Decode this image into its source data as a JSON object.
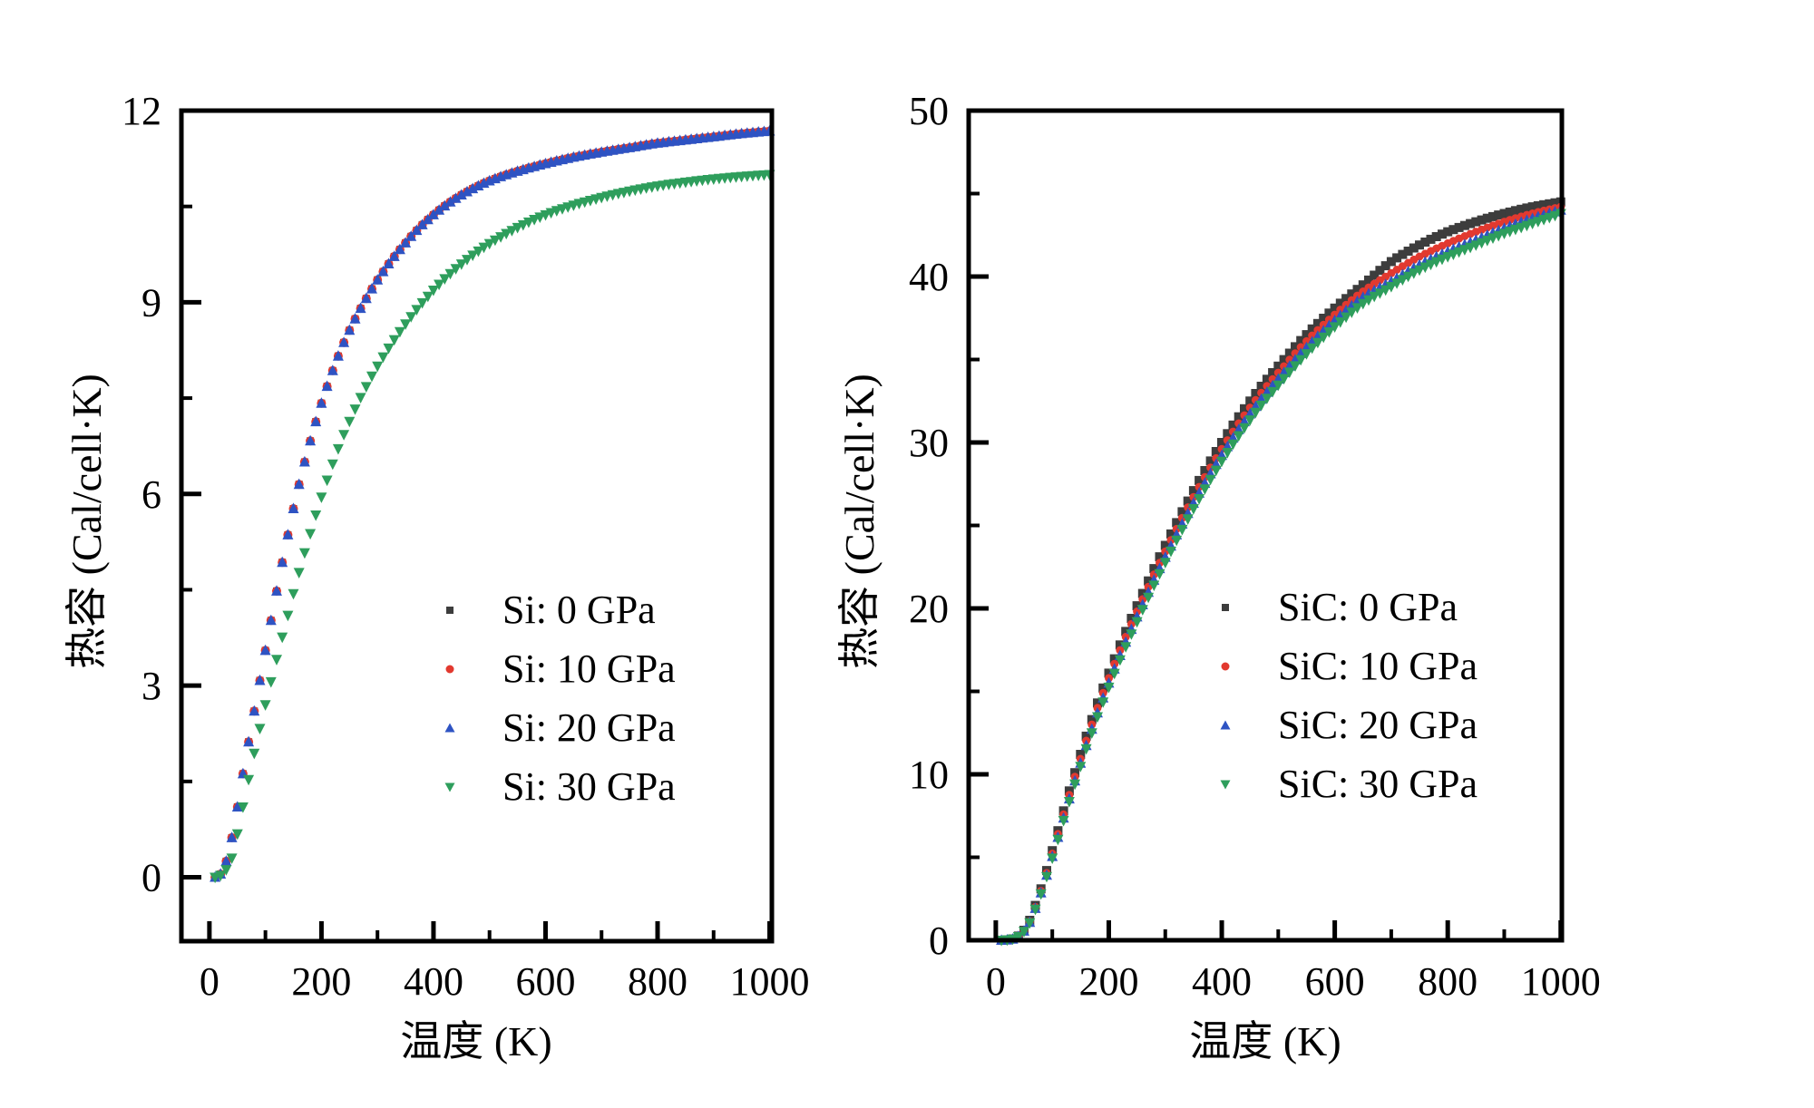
{
  "figure": {
    "background": "#ffffff",
    "text_color": "#000000"
  },
  "chart_data": [
    {
      "id": "si",
      "type": "scatter",
      "title": "",
      "xlabel": "温度 (K)",
      "ylabel": "热容 (Cal/cell·K)",
      "xlim": [
        -50,
        1004
      ],
      "ylim": [
        -1,
        12
      ],
      "grid": false,
      "legend_position": "inside-right-middle",
      "x_ticks_major": [
        0,
        200,
        400,
        600,
        800,
        1000
      ],
      "x_tick_labels": [
        "0",
        "200",
        "400",
        "600",
        "800",
        "1000"
      ],
      "x_ticks_minor": [
        100,
        300,
        500,
        700,
        900
      ],
      "y_ticks_major": [
        0,
        3,
        6,
        9,
        12
      ],
      "y_tick_labels": [
        "0",
        "3",
        "6",
        "9",
        "12"
      ],
      "y_ticks_minor": [
        1.5,
        4.5,
        7.5,
        10.5
      ],
      "sample_step_K": 10,
      "sample_start_K": 10,
      "sample_end_K": 1000,
      "knots_T": [
        10,
        20,
        30,
        40,
        50,
        60,
        70,
        80,
        90,
        100,
        110,
        120,
        130,
        140,
        150,
        160,
        170,
        180,
        190,
        200,
        220,
        240,
        260,
        280,
        300,
        325,
        350,
        375,
        400,
        425,
        450,
        475,
        500,
        550,
        600,
        650,
        700,
        750,
        800,
        850,
        900,
        950,
        1000
      ],
      "series": [
        {
          "name": "Si: 0 GPa",
          "marker": "square",
          "color": "#3d3d3d",
          "size": 8,
          "C": [
            0.0,
            0.05,
            0.25,
            0.62,
            1.1,
            1.62,
            2.12,
            2.6,
            3.08,
            3.55,
            4.02,
            4.48,
            4.93,
            5.36,
            5.77,
            6.15,
            6.5,
            6.83,
            7.13,
            7.42,
            7.93,
            8.37,
            8.74,
            9.06,
            9.35,
            9.66,
            9.93,
            10.17,
            10.37,
            10.54,
            10.68,
            10.8,
            10.9,
            11.05,
            11.17,
            11.27,
            11.35,
            11.42,
            11.49,
            11.54,
            11.59,
            11.64,
            11.68
          ]
        },
        {
          "name": "Si: 10 GPa",
          "marker": "circle",
          "color": "#e2392f",
          "size": 10,
          "C": [
            0.0,
            0.05,
            0.25,
            0.62,
            1.1,
            1.62,
            2.12,
            2.6,
            3.08,
            3.55,
            4.02,
            4.48,
            4.93,
            5.36,
            5.77,
            6.15,
            6.5,
            6.83,
            7.13,
            7.42,
            7.93,
            8.37,
            8.74,
            9.06,
            9.35,
            9.66,
            9.93,
            10.17,
            10.37,
            10.54,
            10.68,
            10.8,
            10.9,
            11.05,
            11.17,
            11.27,
            11.35,
            11.42,
            11.49,
            11.54,
            11.59,
            11.64,
            11.68
          ]
        },
        {
          "name": "Si: 20 GPa",
          "marker": "triangle-up",
          "color": "#2e53c3",
          "size": 12,
          "C": [
            0.0,
            0.05,
            0.25,
            0.62,
            1.1,
            1.62,
            2.12,
            2.6,
            3.08,
            3.55,
            4.02,
            4.48,
            4.93,
            5.36,
            5.77,
            6.15,
            6.5,
            6.83,
            7.13,
            7.42,
            7.93,
            8.37,
            8.74,
            9.06,
            9.35,
            9.66,
            9.93,
            10.17,
            10.37,
            10.54,
            10.68,
            10.8,
            10.9,
            11.05,
            11.17,
            11.27,
            11.35,
            11.42,
            11.49,
            11.54,
            11.59,
            11.64,
            11.68
          ]
        },
        {
          "name": "Si: 30 GPa",
          "marker": "triangle-down",
          "color": "#2e9e5c",
          "size": 12,
          "C": [
            0.0,
            0.03,
            0.12,
            0.3,
            0.68,
            1.1,
            1.53,
            1.94,
            2.33,
            2.7,
            3.06,
            3.41,
            3.76,
            4.1,
            4.44,
            4.77,
            5.08,
            5.38,
            5.67,
            5.95,
            6.47,
            6.93,
            7.33,
            7.68,
            8.0,
            8.35,
            8.66,
            8.94,
            9.19,
            9.41,
            9.6,
            9.77,
            9.92,
            10.17,
            10.37,
            10.52,
            10.64,
            10.74,
            10.82,
            10.88,
            10.93,
            10.97,
            11.0
          ]
        }
      ]
    },
    {
      "id": "sic",
      "type": "scatter",
      "title": "",
      "xlabel": "温度 (K)",
      "ylabel": "热容 (Cal/cell·K)",
      "xlim": [
        -48,
        1002
      ],
      "ylim": [
        0,
        50
      ],
      "grid": false,
      "legend_position": "inside-right-middle",
      "x_ticks_major": [
        0,
        200,
        400,
        600,
        800,
        1000
      ],
      "x_tick_labels": [
        "0",
        "200",
        "400",
        "600",
        "800",
        "1000"
      ],
      "x_ticks_minor": [
        100,
        300,
        500,
        700,
        900
      ],
      "y_ticks_major": [
        0,
        10,
        20,
        30,
        40,
        50
      ],
      "y_tick_labels": [
        "0",
        "10",
        "20",
        "30",
        "40",
        "50"
      ],
      "y_ticks_minor": [
        5,
        15,
        25,
        35,
        45
      ],
      "sample_step_K": 10,
      "sample_start_K": 10,
      "sample_end_K": 1000,
      "knots_T": [
        10,
        20,
        30,
        40,
        50,
        60,
        70,
        80,
        90,
        100,
        110,
        120,
        130,
        140,
        150,
        160,
        170,
        180,
        190,
        200,
        220,
        240,
        260,
        280,
        300,
        325,
        350,
        375,
        400,
        425,
        450,
        475,
        500,
        550,
        600,
        650,
        700,
        750,
        800,
        850,
        900,
        950,
        1000
      ],
      "series": [
        {
          "name": "SiC: 0 GPa",
          "marker": "square",
          "color": "#3d3d3d",
          "size": 10,
          "C": [
            0.0,
            0.02,
            0.08,
            0.25,
            0.6,
            1.2,
            2.1,
            3.1,
            4.2,
            5.4,
            6.6,
            7.8,
            9.0,
            10.1,
            11.2,
            12.3,
            13.3,
            14.3,
            15.2,
            16.1,
            17.8,
            19.4,
            20.9,
            22.4,
            23.8,
            25.5,
            27.1,
            28.6,
            30.0,
            31.3,
            32.5,
            33.6,
            34.6,
            36.5,
            38.1,
            39.5,
            40.9,
            41.9,
            42.7,
            43.3,
            43.8,
            44.2,
            44.5
          ]
        },
        {
          "name": "SiC: 10 GPa",
          "marker": "circle",
          "color": "#e2392f",
          "size": 9,
          "C": [
            0.0,
            0.02,
            0.08,
            0.24,
            0.57,
            1.13,
            2.0,
            2.97,
            4.05,
            5.22,
            6.4,
            7.58,
            8.76,
            9.85,
            10.93,
            12.02,
            13.0,
            14.0,
            14.9,
            15.8,
            17.48,
            19.06,
            20.55,
            22.04,
            23.43,
            25.12,
            26.71,
            28.2,
            29.6,
            30.9,
            32.1,
            33.2,
            34.2,
            36.1,
            37.7,
            39.1,
            40.2,
            41.2,
            42.0,
            42.7,
            43.3,
            43.8,
            44.2
          ]
        },
        {
          "name": "SiC: 20 GPa",
          "marker": "triangle-up",
          "color": "#2e53c3",
          "size": 12,
          "C": [
            0.0,
            0.02,
            0.07,
            0.23,
            0.55,
            1.08,
            1.92,
            2.86,
            3.92,
            5.05,
            6.2,
            7.36,
            8.52,
            9.6,
            10.67,
            11.74,
            12.72,
            13.7,
            14.6,
            15.5,
            17.16,
            18.74,
            20.22,
            21.7,
            23.08,
            24.76,
            26.34,
            27.83,
            29.22,
            30.52,
            31.72,
            32.82,
            33.82,
            35.72,
            37.35,
            38.75,
            39.7,
            40.7,
            41.5,
            42.2,
            42.9,
            43.5,
            44.0
          ]
        },
        {
          "name": "SiC: 30 GPa",
          "marker": "triangle-down",
          "color": "#2e9e5c",
          "size": 12,
          "C": [
            0.0,
            0.02,
            0.07,
            0.22,
            0.53,
            1.05,
            1.87,
            2.8,
            3.84,
            4.95,
            6.08,
            7.22,
            8.36,
            9.42,
            10.48,
            11.54,
            12.5,
            13.47,
            14.36,
            15.25,
            16.9,
            18.46,
            19.93,
            21.4,
            22.77,
            24.44,
            26.01,
            27.49,
            28.87,
            30.16,
            31.36,
            32.46,
            33.46,
            35.35,
            36.97,
            38.37,
            39.4,
            40.4,
            41.2,
            41.9,
            42.6,
            43.2,
            43.8
          ]
        }
      ]
    }
  ]
}
